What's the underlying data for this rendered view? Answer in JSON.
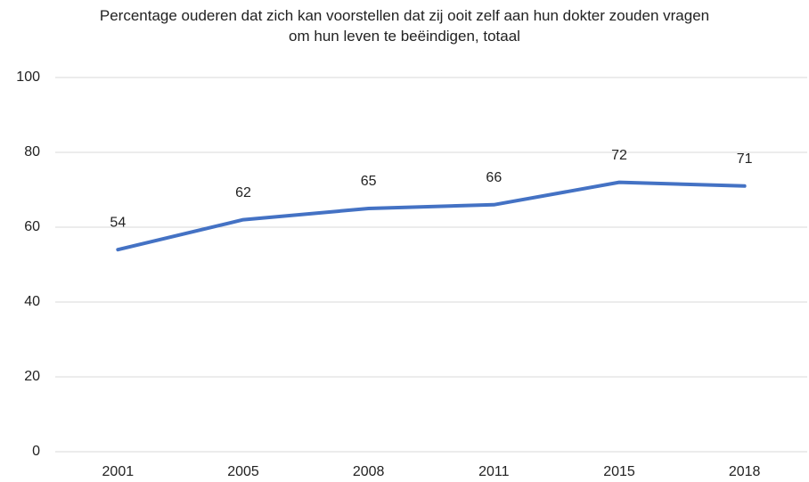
{
  "chart_data": {
    "type": "line",
    "title": "Percentage ouderen dat zich kan voorstellen dat zij ooit zelf aan hun dokter zouden vragen om hun leven te beëindigen, totaal",
    "categories": [
      "2001",
      "2005",
      "2008",
      "2011",
      "2015",
      "2018"
    ],
    "series": [
      {
        "name": "totaal",
        "color": "#4472c4",
        "values": [
          54,
          62,
          65,
          66,
          72,
          71
        ]
      }
    ],
    "ylim": [
      0,
      100
    ],
    "yticks": [
      0,
      20,
      40,
      60,
      80,
      100
    ],
    "grid": true,
    "data_labels": true,
    "legend": false
  }
}
